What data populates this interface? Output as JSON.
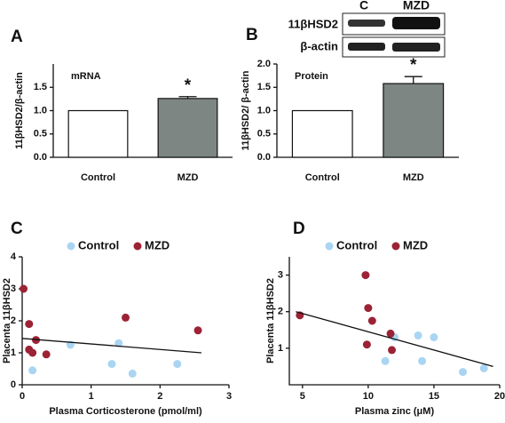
{
  "chart_data": [
    {
      "type": "bar",
      "label": "A",
      "annotation": "mRNA",
      "ylabel": "11βHSD2/β-actin",
      "categories": [
        "Control",
        "MZD"
      ],
      "values": [
        1.0,
        1.26
      ],
      "errors": [
        0,
        0.04
      ],
      "significance": [
        null,
        "*"
      ],
      "colors": [
        "#ffffff",
        "#7d8682"
      ],
      "ylim": [
        0,
        2.0
      ],
      "yticks": [
        {
          "value": 0,
          "label": "0.0"
        },
        {
          "value": 0.5,
          "label": "0.5"
        },
        {
          "value": 1,
          "label": "1.0"
        },
        {
          "value": 1.5,
          "label": "1.5"
        }
      ]
    },
    {
      "type": "bar",
      "label": "B",
      "annotation": "Protein",
      "ylabel": "11βHSD2/ β-actin",
      "categories": [
        "Control",
        "MZD"
      ],
      "values": [
        1.0,
        1.58
      ],
      "errors": [
        0,
        0.15
      ],
      "significance": [
        null,
        "*"
      ],
      "colors": [
        "#ffffff",
        "#7d8682"
      ],
      "ylim": [
        0,
        2.0
      ],
      "yticks": [
        {
          "value": 0,
          "label": "0.0"
        },
        {
          "value": 0.5,
          "label": "0.5"
        },
        {
          "value": 1,
          "label": "1.0"
        },
        {
          "value": 1.5,
          "label": "1.5"
        },
        {
          "value": 2,
          "label": "2.0"
        }
      ],
      "blot": {
        "lanes": [
          "C",
          "MZD"
        ],
        "rows": [
          "11βHSD2",
          "β-actin"
        ]
      }
    },
    {
      "type": "scatter",
      "label": "C",
      "xlabel": "Plasma Corticosterone (pmol/ml)",
      "ylabel": "Placenta 11βHSD2",
      "series": [
        {
          "name": "Control",
          "color": "#a9d5f2",
          "x": [
            0.15,
            0.7,
            1.3,
            1.4,
            1.6,
            2.25
          ],
          "y": [
            0.45,
            1.25,
            0.65,
            1.3,
            0.35,
            0.65
          ]
        },
        {
          "name": "MZD",
          "color": "#9b2335",
          "x": [
            0.02,
            0.1,
            0.1,
            0.15,
            0.2,
            0.35,
            1.5,
            2.55
          ],
          "y": [
            3.0,
            1.9,
            1.1,
            1.0,
            1.4,
            0.95,
            2.1,
            1.7
          ]
        }
      ],
      "fit_line": {
        "x": [
          0,
          2.6
        ],
        "y": [
          1.45,
          1.0
        ]
      },
      "xlim": [
        0,
        3
      ],
      "xticks": [
        0,
        1,
        2,
        3
      ],
      "ylim": [
        0,
        4
      ],
      "yticks": [
        0,
        1,
        2,
        3,
        4
      ]
    },
    {
      "type": "scatter",
      "label": "D",
      "xlabel": "Plasma zinc (μM)",
      "ylabel": "Placenta 11βHSD2",
      "series": [
        {
          "name": "Control",
          "color": "#a9d5f2",
          "x": [
            11.3,
            12.0,
            13.8,
            14.1,
            15.0,
            17.2,
            18.8
          ],
          "y": [
            0.65,
            1.3,
            1.35,
            0.65,
            1.3,
            0.35,
            0.45
          ]
        },
        {
          "name": "MZD",
          "color": "#9b2335",
          "x": [
            4.8,
            9.8,
            10.0,
            10.3,
            9.9,
            11.7,
            11.8
          ],
          "y": [
            1.9,
            3.0,
            2.1,
            1.75,
            1.1,
            1.4,
            0.95
          ]
        }
      ],
      "fit_line": {
        "x": [
          4.5,
          19.5
        ],
        "y": [
          2.0,
          0.5
        ]
      },
      "xlim": [
        4,
        20
      ],
      "xticks": [
        5,
        10,
        15,
        20
      ],
      "ylim": [
        0,
        3.5
      ],
      "yticks": [
        1,
        2,
        3
      ]
    }
  ]
}
